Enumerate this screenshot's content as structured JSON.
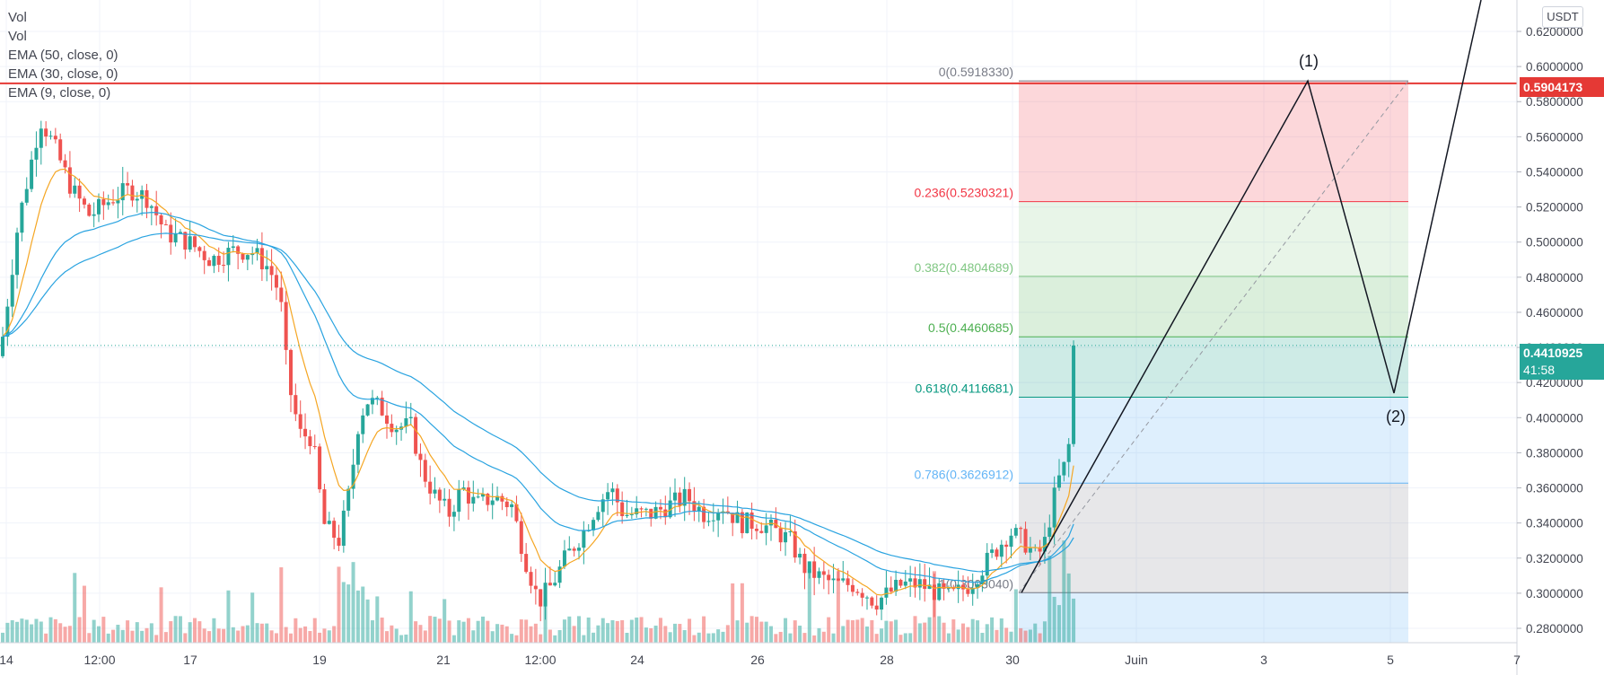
{
  "legend": [
    "Vol",
    "Vol",
    "EMA (50, close, 0)",
    "EMA (30, close, 0)",
    "EMA (9, close, 0)"
  ],
  "axis_unit": "USDT",
  "colors": {
    "up": "#26a69a",
    "down": "#ef5350",
    "ema_fast": "#f5a623",
    "ema_slow": "#29a3e0",
    "red_line": "#e53935",
    "price_tag_current": "#26a69a",
    "price_tag_red": "#e53935"
  },
  "price_tags": {
    "red_level": "0.5904173",
    "current": "0.4410925",
    "countdown": "41:58"
  },
  "wave_labels": [
    "(1)",
    "(2)"
  ],
  "chart_data": {
    "type": "candlestick",
    "y_ticks": [
      "0.6200000",
      "0.6000000",
      "0.5800000",
      "0.5600000",
      "0.5400000",
      "0.5200000",
      "0.5000000",
      "0.4800000",
      "0.4600000",
      "0.4400000",
      "0.4200000",
      "0.4000000",
      "0.3800000",
      "0.3600000",
      "0.3400000",
      "0.3200000",
      "0.3000000",
      "0.2800000"
    ],
    "ylim": [
      0.277,
      0.6345
    ],
    "x_ticks": [
      "14",
      "12:00",
      "17",
      "19",
      "21",
      "12:00",
      "24",
      "26",
      "28",
      "30",
      "Juin",
      "3",
      "5",
      "7"
    ],
    "fib_levels": [
      {
        "label": "0(0.5918330)",
        "value": 0.591833,
        "color": "#787b86"
      },
      {
        "label": "0.236(0.5230321)",
        "value": 0.5230321,
        "color": "#f23645"
      },
      {
        "label": "0.382(0.4804689)",
        "value": 0.4804689,
        "color": "#81c784"
      },
      {
        "label": "0.5(0.4460685)",
        "value": 0.4460685,
        "color": "#4caf50"
      },
      {
        "label": "0.618(0.4116681)",
        "value": 0.4116681,
        "color": "#089981"
      },
      {
        "label": "0.786(0.3626912)",
        "value": 0.3626912,
        "color": "#64b5f6"
      },
      {
        "label": "1(0.3003040)",
        "value": 0.300304,
        "color": "#787b86"
      }
    ],
    "close_path": [
      [
        0,
        0.435
      ],
      [
        20,
        0.51
      ],
      [
        45,
        0.57
      ],
      [
        60,
        0.555
      ],
      [
        80,
        0.53
      ],
      [
        100,
        0.515
      ],
      [
        125,
        0.525
      ],
      [
        145,
        0.53
      ],
      [
        165,
        0.525
      ],
      [
        185,
        0.505
      ],
      [
        210,
        0.5
      ],
      [
        235,
        0.49
      ],
      [
        260,
        0.495
      ],
      [
        280,
        0.495
      ],
      [
        300,
        0.485
      ],
      [
        312,
        0.47
      ],
      [
        318,
        0.435
      ],
      [
        325,
        0.41
      ],
      [
        335,
        0.39
      ],
      [
        345,
        0.39
      ],
      [
        352,
        0.375
      ],
      [
        360,
        0.34
      ],
      [
        368,
        0.335
      ],
      [
        378,
        0.33
      ],
      [
        390,
        0.36
      ],
      [
        400,
        0.4
      ],
      [
        410,
        0.41
      ],
      [
        425,
        0.405
      ],
      [
        440,
        0.395
      ],
      [
        458,
        0.395
      ],
      [
        470,
        0.37
      ],
      [
        485,
        0.355
      ],
      [
        500,
        0.345
      ],
      [
        515,
        0.36
      ],
      [
        530,
        0.35
      ],
      [
        550,
        0.355
      ],
      [
        570,
        0.35
      ],
      [
        585,
        0.32
      ],
      [
        600,
        0.295
      ],
      [
        615,
        0.305
      ],
      [
        630,
        0.32
      ],
      [
        650,
        0.335
      ],
      [
        665,
        0.35
      ],
      [
        680,
        0.36
      ],
      [
        695,
        0.345
      ],
      [
        710,
        0.345
      ],
      [
        725,
        0.345
      ],
      [
        745,
        0.35
      ],
      [
        765,
        0.355
      ],
      [
        785,
        0.345
      ],
      [
        805,
        0.35
      ],
      [
        825,
        0.34
      ],
      [
        845,
        0.34
      ],
      [
        865,
        0.335
      ],
      [
        880,
        0.33
      ],
      [
        895,
        0.315
      ],
      [
        910,
        0.31
      ],
      [
        930,
        0.305
      ],
      [
        950,
        0.305
      ],
      [
        965,
        0.3
      ],
      [
        975,
        0.295
      ],
      [
        990,
        0.3
      ],
      [
        1005,
        0.305
      ],
      [
        1025,
        0.305
      ],
      [
        1045,
        0.3
      ],
      [
        1060,
        0.298
      ],
      [
        1080,
        0.305
      ],
      [
        1095,
        0.315
      ],
      [
        1110,
        0.325
      ],
      [
        1125,
        0.335
      ],
      [
        1140,
        0.33
      ],
      [
        1155,
        0.32
      ],
      [
        1165,
        0.33
      ],
      [
        1172,
        0.35
      ],
      [
        1180,
        0.365
      ],
      [
        1188,
        0.375
      ],
      [
        1194,
        0.395
      ],
      [
        1200,
        0.441
      ]
    ]
  }
}
